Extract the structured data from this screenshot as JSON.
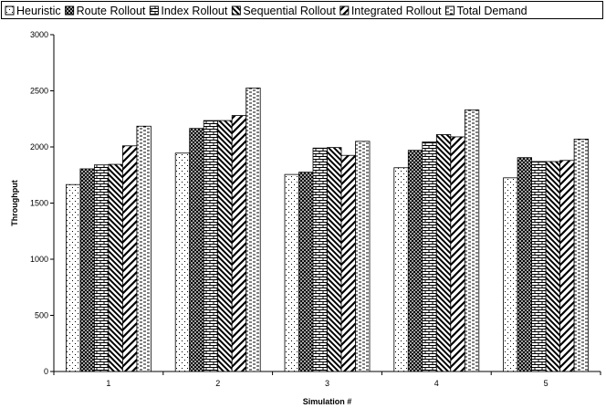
{
  "chart_data": {
    "type": "bar",
    "title": "",
    "xlabel": "Simulation #",
    "ylabel": "Throughput",
    "ylim": [
      0,
      3000
    ],
    "yticks": [
      0,
      500,
      1000,
      1500,
      2000,
      2500,
      3000
    ],
    "categories": [
      "1",
      "2",
      "3",
      "4",
      "5"
    ],
    "grid": false,
    "legend_position": "top",
    "series": [
      {
        "name": "Heuristic",
        "pattern": "dots-sparse",
        "values": [
          1665,
          1945,
          1755,
          1815,
          1725
        ]
      },
      {
        "name": "Route Rollout",
        "pattern": "crosshatch-dense",
        "values": [
          1805,
          2165,
          1775,
          1970,
          1905
        ]
      },
      {
        "name": "Index Rollout",
        "pattern": "brick",
        "values": [
          1840,
          2235,
          1990,
          2045,
          1870
        ]
      },
      {
        "name": "Sequential Rollout",
        "pattern": "diag-left",
        "values": [
          1845,
          2235,
          1995,
          2110,
          1870
        ]
      },
      {
        "name": "Integrated Rollout",
        "pattern": "zigzag",
        "values": [
          2010,
          2280,
          1925,
          2090,
          1880
        ]
      },
      {
        "name": "Total Demand",
        "pattern": "dashes",
        "values": [
          2185,
          2525,
          2050,
          2330,
          2070
        ]
      }
    ]
  }
}
